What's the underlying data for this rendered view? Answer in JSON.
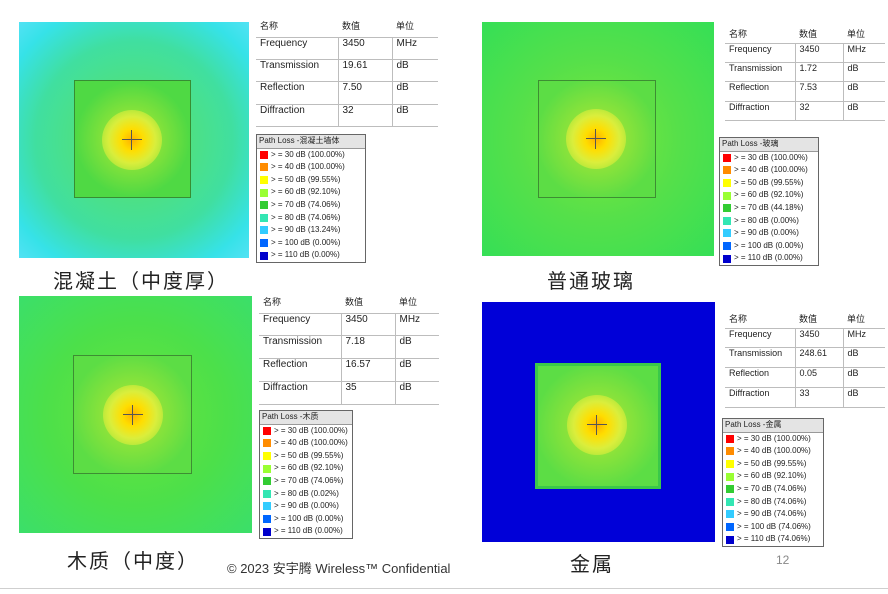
{
  "panels": [
    {
      "caption": "混凝土（中度厚）",
      "table_headers": [
        "名称",
        "数值",
        "单位"
      ],
      "rows": [
        {
          "name": "Frequency",
          "value": "3450",
          "unit": "MHz"
        },
        {
          "name": "Transmission",
          "value": "19.61",
          "unit": "dB"
        },
        {
          "name": "Reflection",
          "value": "7.50",
          "unit": "dB"
        },
        {
          "name": "Diffraction",
          "value": "32",
          "unit": "dB"
        }
      ],
      "legend_title": "Path Loss -混凝土墙体",
      "legend": [
        "> = 30 dB  (100.00%)",
        "> = 40 dB  (100.00%)",
        "> = 50 dB  (99.55%)",
        "> = 60 dB  (92.10%)",
        "> = 70 dB  (74.06%)",
        "> = 80 dB  (74.06%)",
        "> = 90 dB  (13.24%)",
        "> = 100 dB  (0.00%)",
        "> = 110 dB  (0.00%)"
      ]
    },
    {
      "caption": "普通玻璃",
      "table_headers": [
        "名称",
        "数值",
        "单位"
      ],
      "rows": [
        {
          "name": "Frequency",
          "value": "3450",
          "unit": "MHz"
        },
        {
          "name": "Transmission",
          "value": "1.72",
          "unit": "dB"
        },
        {
          "name": "Reflection",
          "value": "7.53",
          "unit": "dB"
        },
        {
          "name": "Diffraction",
          "value": "32",
          "unit": "dB"
        }
      ],
      "legend_title": "Path Loss -玻璃",
      "legend": [
        "> = 30 dB  (100.00%)",
        "> = 40 dB  (100.00%)",
        "> = 50 dB  (99.55%)",
        "> = 60 dB  (92.10%)",
        "> = 70 dB  (44.18%)",
        "> = 80 dB  (0.00%)",
        "> = 90 dB  (0.00%)",
        "> = 100 dB  (0.00%)",
        "> = 110 dB  (0.00%)"
      ]
    },
    {
      "caption": "木质（中度）",
      "table_headers": [
        "名称",
        "数值",
        "单位"
      ],
      "rows": [
        {
          "name": "Frequency",
          "value": "3450",
          "unit": "MHz"
        },
        {
          "name": "Transmission",
          "value": "7.18",
          "unit": "dB"
        },
        {
          "name": "Reflection",
          "value": "16.57",
          "unit": "dB"
        },
        {
          "name": "Diffraction",
          "value": "35",
          "unit": "dB"
        }
      ],
      "legend_title": "Path Loss -木质",
      "legend": [
        "> = 30 dB  (100.00%)",
        "> = 40 dB  (100.00%)",
        "> = 50 dB  (99.55%)",
        "> = 60 dB  (92.10%)",
        "> = 70 dB  (74.06%)",
        "> = 80 dB  (0.02%)",
        "> = 90 dB  (0.00%)",
        "> = 100 dB  (0.00%)",
        "> = 110 dB  (0.00%)"
      ]
    },
    {
      "caption": "金属",
      "table_headers": [
        "名称",
        "数值",
        "单位"
      ],
      "rows": [
        {
          "name": "Frequency",
          "value": "3450",
          "unit": "MHz"
        },
        {
          "name": "Transmission",
          "value": "248.61",
          "unit": "dB"
        },
        {
          "name": "Reflection",
          "value": "0.05",
          "unit": "dB"
        },
        {
          "name": "Diffraction",
          "value": "33",
          "unit": "dB"
        }
      ],
      "legend_title": "Path Loss -金属",
      "legend": [
        "> = 30 dB  (100.00%)",
        "> = 40 dB  (100.00%)",
        "> = 50 dB  (99.55%)",
        "> = 60 dB  (92.10%)",
        "> = 70 dB  (74.06%)",
        "> = 80 dB  (74.06%)",
        "> = 90 dB  (74.06%)",
        "> = 100 dB  (74.06%)",
        "> = 110 dB  (74.06%)"
      ]
    }
  ],
  "legend_colors": [
    "#ff0000",
    "#ff8c00",
    "#ffff00",
    "#99ff33",
    "#33cc33",
    "#33e6b3",
    "#33ccff",
    "#0066ff",
    "#0000cc"
  ],
  "footer": "© 2023 安宇腾 Wireless™ Confidential",
  "page_number": "12"
}
